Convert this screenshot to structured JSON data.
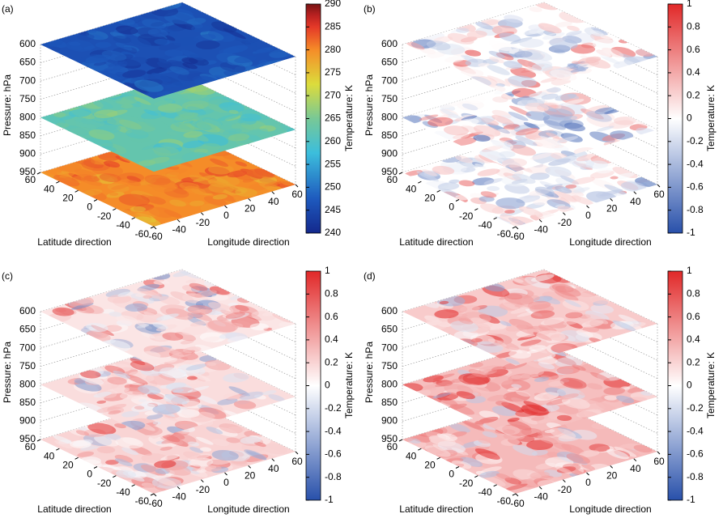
{
  "chart_data": [
    {
      "type": "slice3d",
      "panel_label": "(a)",
      "zlabel": "Pressure: hPa",
      "xlabel": "Latitude direction",
      "ylabel": "Longitude direction",
      "colorbar_label": "Temperature: K",
      "zlim": [
        600,
        950
      ],
      "zticks": [
        600,
        650,
        700,
        750,
        800,
        850,
        900,
        950
      ],
      "levels": [
        600,
        800,
        950
      ],
      "xlim": [
        60,
        -60
      ],
      "xticks": [
        60,
        40,
        20,
        0,
        -20,
        -40,
        -60
      ],
      "ylim": [
        -60,
        60
      ],
      "yticks": [
        -60,
        -40,
        -20,
        0,
        20,
        40,
        60
      ],
      "clim": [
        240,
        290
      ],
      "cticks": [
        240,
        245,
        250,
        255,
        260,
        265,
        270,
        275,
        280,
        285,
        290
      ],
      "colormap": "jet",
      "grid": true
    },
    {
      "type": "slice3d",
      "panel_label": "(b)",
      "zlabel": "Pressure: hPa",
      "xlabel": "Latitude direction",
      "ylabel": "Longitude direction",
      "colorbar_label": "Temperature: K",
      "zlim": [
        600,
        950
      ],
      "zticks": [
        600,
        650,
        700,
        750,
        800,
        850,
        900,
        950
      ],
      "levels": [
        600,
        800,
        950
      ],
      "xlim": [
        60,
        -60
      ],
      "xticks": [
        60,
        40,
        20,
        0,
        -20,
        -40,
        -60
      ],
      "ylim": [
        -60,
        60
      ],
      "yticks": [
        -60,
        -40,
        -20,
        0,
        20,
        40,
        60
      ],
      "clim": [
        -1,
        1
      ],
      "cticks": [
        -1,
        -0.8,
        -0.6,
        -0.4,
        -0.2,
        0,
        0.2,
        0.4,
        0.6,
        0.8,
        1
      ],
      "colormap": "bwr",
      "grid": true
    },
    {
      "type": "slice3d",
      "panel_label": "(c)",
      "zlabel": "Pressure: hPa",
      "xlabel": "Latitude direction",
      "ylabel": "Longitude direction",
      "colorbar_label": "Temperature: K",
      "zlim": [
        600,
        950
      ],
      "zticks": [
        600,
        650,
        700,
        750,
        800,
        850,
        900,
        950
      ],
      "levels": [
        600,
        800,
        950
      ],
      "xlim": [
        60,
        -60
      ],
      "xticks": [
        60,
        40,
        20,
        0,
        -20,
        -40,
        -60
      ],
      "ylim": [
        -60,
        60
      ],
      "yticks": [
        -60,
        -40,
        -20,
        0,
        20,
        40,
        60
      ],
      "clim": [
        -1,
        1
      ],
      "cticks": [
        -1,
        -0.8,
        -0.6,
        -0.4,
        -0.2,
        0,
        0.2,
        0.4,
        0.6,
        0.8,
        1
      ],
      "colormap": "bwr",
      "grid": true
    },
    {
      "type": "slice3d",
      "panel_label": "(d)",
      "zlabel": "Pressure: hPa",
      "xlabel": "Latitude direction",
      "ylabel": "Longitude direction",
      "colorbar_label": "Temperature: K",
      "zlim": [
        600,
        950
      ],
      "zticks": [
        600,
        650,
        700,
        750,
        800,
        850,
        900,
        950
      ],
      "levels": [
        600,
        800,
        950
      ],
      "xlim": [
        60,
        -60
      ],
      "xticks": [
        60,
        40,
        20,
        0,
        -20,
        -40,
        -60
      ],
      "ylim": [
        -60,
        60
      ],
      "yticks": [
        -60,
        -40,
        -20,
        0,
        20,
        40,
        60
      ],
      "clim": [
        -1,
        1
      ],
      "cticks": [
        -1,
        -0.8,
        -0.6,
        -0.4,
        -0.2,
        0,
        0.2,
        0.4,
        0.6,
        0.8,
        1
      ],
      "colormap": "bwr",
      "grid": true
    }
  ]
}
